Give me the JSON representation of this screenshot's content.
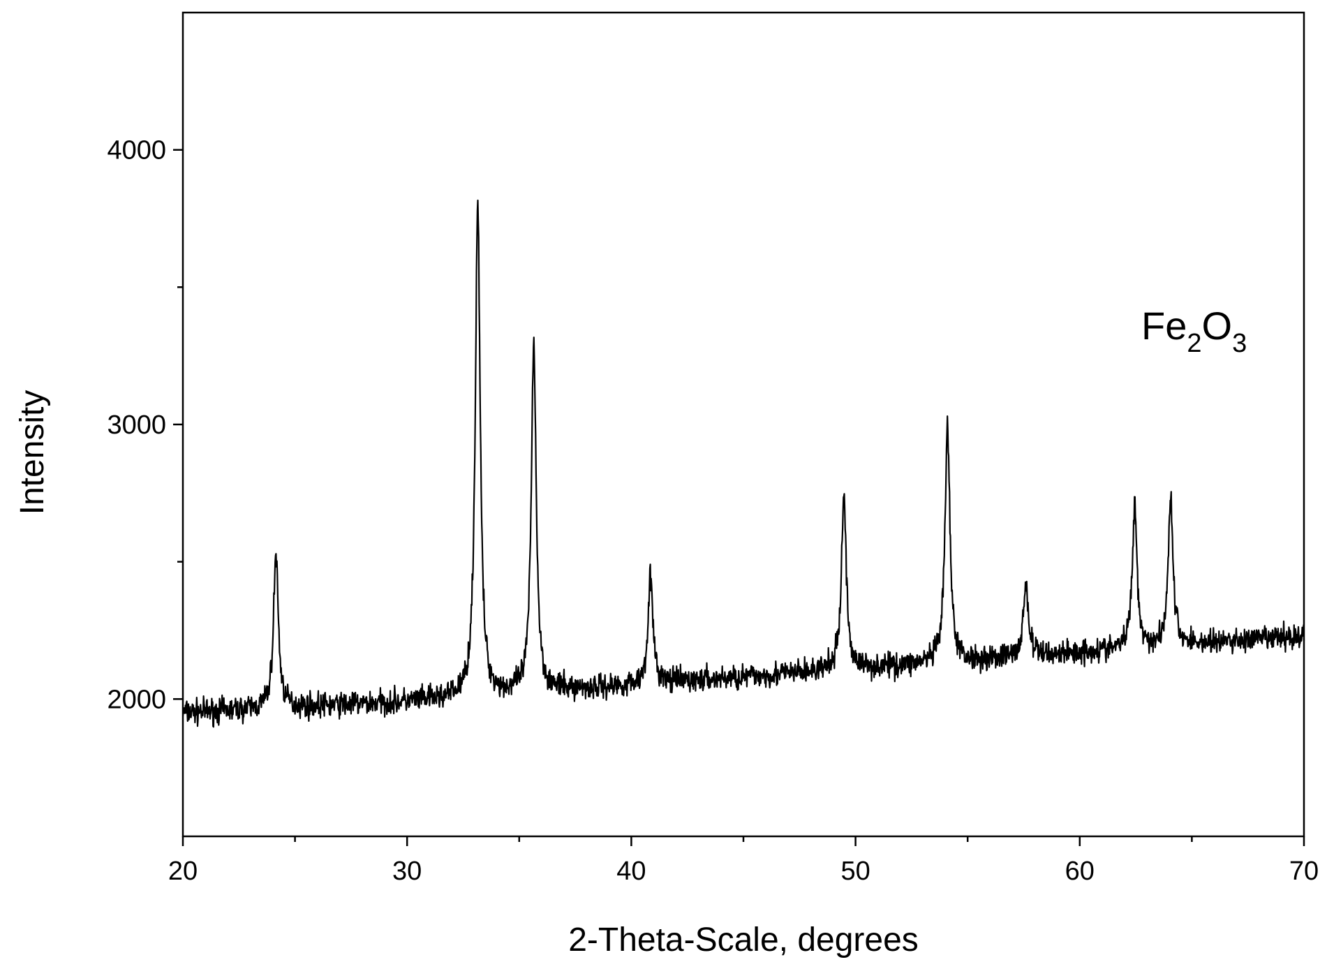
{
  "chart_data": {
    "type": "line",
    "title": "",
    "xlabel": "2-Theta-Scale, degrees",
    "ylabel": "Intensity",
    "xlim": [
      20,
      70
    ],
    "ylim": [
      1500,
      4500
    ],
    "x_ticks": [
      20,
      30,
      40,
      50,
      60,
      70
    ],
    "x_minor_ticks": [
      25,
      35,
      45,
      55,
      65
    ],
    "y_ticks": [
      2000,
      3000,
      4000
    ],
    "y_minor_ticks": [
      2500,
      3500
    ],
    "grid": false,
    "line_color": "#000000",
    "annotation": {
      "base": "Fe",
      "sub1": "2",
      "mid": "O",
      "sub2": "3"
    },
    "baseline": {
      "x": [
        20,
        30,
        40,
        50,
        60,
        70
      ],
      "y": [
        1950,
        1990,
        2050,
        2110,
        2170,
        2230
      ]
    },
    "noise_amplitude": 45,
    "peaks": [
      {
        "x": 24.15,
        "y": 2530
      },
      {
        "x": 33.15,
        "y": 3810
      },
      {
        "x": 35.65,
        "y": 3300
      },
      {
        "x": 40.85,
        "y": 2450
      },
      {
        "x": 49.48,
        "y": 2740
      },
      {
        "x": 54.1,
        "y": 2990
      },
      {
        "x": 57.6,
        "y": 2420
      },
      {
        "x": 62.45,
        "y": 2700
      },
      {
        "x": 64.05,
        "y": 2730
      }
    ]
  }
}
